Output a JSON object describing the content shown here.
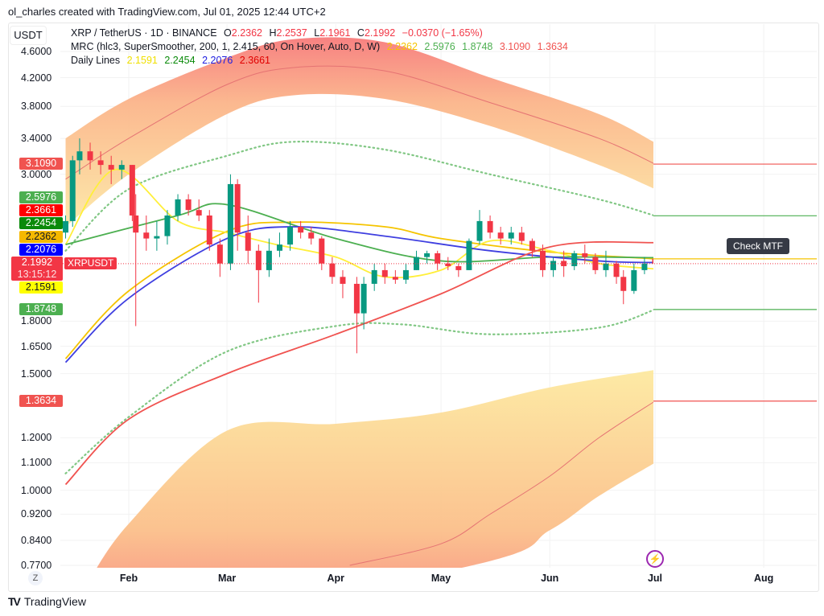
{
  "credit": "ol_charles created with TradingView.com, Jul 01, 2025 12:44 UTC+2",
  "currency_unit": "USDT",
  "symbol_line": {
    "name": "XRP / TetherUS · 1D · BINANCE",
    "o_label": "O",
    "o": "2.2362",
    "h_label": "H",
    "h": "2.2537",
    "l_label": "L",
    "l": "2.1961",
    "c_label": "C",
    "c": "2.1992",
    "change": "−0.0370 (−1.65%)"
  },
  "mrc_line": {
    "name": "MRC (hlc3, SuperSmoother, 200, 1, 2.415, 60, On Hover, Auto, D, W)",
    "values": [
      "2.2362",
      "2.5976",
      "1.8748",
      "3.1090",
      "1.3634"
    ]
  },
  "daily_line": {
    "name": "Daily Lines",
    "values": [
      "2.1591",
      "2.2454",
      "2.2076",
      "2.3661"
    ]
  },
  "badges": [
    {
      "value": "3.1090",
      "color": "#f05350"
    },
    {
      "value": "2.5976",
      "color": "#4caf50"
    },
    {
      "value": "2.3661",
      "color": "#ff0000"
    },
    {
      "value": "2.2454",
      "color": "#0a8a0a"
    },
    {
      "value": "2.2362",
      "color": "#f5b800"
    },
    {
      "value": "2.2076",
      "color": "#0000ff"
    },
    {
      "value": "2.1591",
      "color": "#ffff00"
    },
    {
      "value": "1.8748",
      "color": "#4caf50"
    },
    {
      "value": "1.3634",
      "color": "#f05350"
    }
  ],
  "last_price": {
    "value": "2.1992",
    "countdown": "13:15:12",
    "symbol": "XRPUSDT"
  },
  "tooltip": "Check MTF",
  "zoom_button": "Z",
  "logo": {
    "mark": "TV",
    "text": "TradingView"
  },
  "colors": {
    "up": "#089981",
    "down": "#f23645"
  },
  "chart_data": {
    "type": "candlestick",
    "yscale": "log",
    "ylim": [
      0.77,
      4.6
    ],
    "yticks": [
      "4.6000",
      "4.2000",
      "3.8000",
      "3.4000",
      "3.0000",
      "1.8000",
      "1.6500",
      "1.5000",
      "1.2000",
      "1.1000",
      "1.0000",
      "0.9200",
      "0.8400",
      "0.7700"
    ],
    "xticks": [
      {
        "label": "Feb",
        "date": "2025-02-01"
      },
      {
        "label": "Mar",
        "date": "2025-03-01"
      },
      {
        "label": "Apr",
        "date": "2025-04-01"
      },
      {
        "label": "May",
        "date": "2025-05-01"
      },
      {
        "label": "Jun",
        "date": "2025-06-01"
      },
      {
        "label": "Jul",
        "date": "2025-07-01"
      },
      {
        "label": "Aug",
        "date": "2025-08-01"
      }
    ],
    "candles_fields": [
      "date",
      "open",
      "high",
      "low",
      "close"
    ],
    "candles": [
      [
        "2025-01-14",
        2.45,
        2.6,
        2.4,
        2.55
      ],
      [
        "2025-01-16",
        2.55,
        3.2,
        2.5,
        3.15
      ],
      [
        "2025-01-18",
        3.15,
        3.4,
        3.0,
        3.25
      ],
      [
        "2025-01-21",
        3.25,
        3.35,
        3.05,
        3.15
      ],
      [
        "2025-01-24",
        3.15,
        3.25,
        3.0,
        3.1
      ],
      [
        "2025-01-27",
        3.1,
        3.2,
        2.9,
        3.05
      ],
      [
        "2025-01-30",
        3.05,
        3.15,
        2.95,
        3.1
      ],
      [
        "2025-02-02",
        3.1,
        3.1,
        2.55,
        2.6
      ],
      [
        "2025-02-03",
        2.6,
        2.8,
        1.77,
        2.45
      ],
      [
        "2025-02-06",
        2.45,
        2.6,
        2.3,
        2.4
      ],
      [
        "2025-02-09",
        2.4,
        2.55,
        2.3,
        2.42
      ],
      [
        "2025-02-12",
        2.42,
        2.65,
        2.35,
        2.6
      ],
      [
        "2025-02-15",
        2.6,
        2.8,
        2.55,
        2.75
      ],
      [
        "2025-02-18",
        2.75,
        2.8,
        2.6,
        2.65
      ],
      [
        "2025-02-21",
        2.65,
        2.75,
        2.55,
        2.6
      ],
      [
        "2025-02-24",
        2.6,
        2.65,
        2.3,
        2.35
      ],
      [
        "2025-02-27",
        2.35,
        2.4,
        2.1,
        2.2
      ],
      [
        "2025-03-02",
        2.2,
        3.0,
        2.15,
        2.9
      ],
      [
        "2025-03-04",
        2.9,
        2.95,
        2.3,
        2.45
      ],
      [
        "2025-03-07",
        2.45,
        2.6,
        2.2,
        2.3
      ],
      [
        "2025-03-10",
        2.3,
        2.35,
        1.92,
        2.15
      ],
      [
        "2025-03-13",
        2.15,
        2.4,
        2.1,
        2.3
      ],
      [
        "2025-03-16",
        2.3,
        2.45,
        2.25,
        2.35
      ],
      [
        "2025-03-19",
        2.35,
        2.55,
        2.3,
        2.5
      ],
      [
        "2025-03-22",
        2.5,
        2.55,
        2.4,
        2.45
      ],
      [
        "2025-03-25",
        2.45,
        2.5,
        2.35,
        2.4
      ],
      [
        "2025-03-28",
        2.4,
        2.42,
        2.15,
        2.2
      ],
      [
        "2025-03-31",
        2.2,
        2.25,
        2.05,
        2.1
      ],
      [
        "2025-04-03",
        2.1,
        2.15,
        1.95,
        2.05
      ],
      [
        "2025-04-07",
        2.05,
        2.1,
        1.61,
        1.85
      ],
      [
        "2025-04-09",
        1.85,
        2.1,
        1.75,
        2.05
      ],
      [
        "2025-04-12",
        2.05,
        2.2,
        2.0,
        2.15
      ],
      [
        "2025-04-15",
        2.15,
        2.2,
        2.05,
        2.1
      ],
      [
        "2025-04-18",
        2.1,
        2.15,
        2.05,
        2.08
      ],
      [
        "2025-04-21",
        2.08,
        2.2,
        2.05,
        2.15
      ],
      [
        "2025-04-24",
        2.15,
        2.3,
        2.15,
        2.25
      ],
      [
        "2025-04-27",
        2.25,
        2.3,
        2.2,
        2.28
      ],
      [
        "2025-04-30",
        2.28,
        2.3,
        2.15,
        2.2
      ],
      [
        "2025-05-03",
        2.2,
        2.25,
        2.15,
        2.18
      ],
      [
        "2025-05-06",
        2.18,
        2.2,
        2.1,
        2.15
      ],
      [
        "2025-05-09",
        2.15,
        2.4,
        2.15,
        2.38
      ],
      [
        "2025-05-12",
        2.38,
        2.65,
        2.35,
        2.55
      ],
      [
        "2025-05-15",
        2.55,
        2.6,
        2.4,
        2.45
      ],
      [
        "2025-05-18",
        2.45,
        2.5,
        2.35,
        2.4
      ],
      [
        "2025-05-21",
        2.4,
        2.5,
        2.35,
        2.45
      ],
      [
        "2025-05-24",
        2.45,
        2.5,
        2.35,
        2.38
      ],
      [
        "2025-05-27",
        2.38,
        2.4,
        2.25,
        2.3
      ],
      [
        "2025-05-30",
        2.3,
        2.35,
        2.1,
        2.15
      ],
      [
        "2025-06-02",
        2.15,
        2.25,
        2.1,
        2.22
      ],
      [
        "2025-06-05",
        2.22,
        2.3,
        2.1,
        2.18
      ],
      [
        "2025-06-08",
        2.18,
        2.3,
        2.15,
        2.28
      ],
      [
        "2025-06-11",
        2.28,
        2.35,
        2.2,
        2.25
      ],
      [
        "2025-06-14",
        2.25,
        2.28,
        2.12,
        2.15
      ],
      [
        "2025-06-17",
        2.15,
        2.3,
        2.1,
        2.2
      ],
      [
        "2025-06-20",
        2.2,
        2.22,
        2.05,
        2.1
      ],
      [
        "2025-06-22",
        2.1,
        2.15,
        1.91,
        2.0
      ],
      [
        "2025-06-25",
        2.0,
        2.2,
        1.98,
        2.15
      ],
      [
        "2025-06-28",
        2.15,
        2.25,
        2.12,
        2.2
      ],
      [
        "2025-07-01",
        2.2362,
        2.2537,
        2.1961,
        2.1992
      ]
    ],
    "bands": {
      "upper_outer_edge": [
        [
          "2025-01-14",
          3.4
        ],
        [
          "2025-02-01",
          3.9
        ],
        [
          "2025-03-01",
          4.5
        ],
        [
          "2025-03-20",
          4.8
        ],
        [
          "2025-04-15",
          4.75
        ],
        [
          "2025-05-15",
          4.2
        ],
        [
          "2025-06-15",
          3.7
        ],
        [
          "2025-07-01",
          3.35
        ]
      ],
      "upper_inner_edge": [
        [
          "2025-01-14",
          2.5
        ],
        [
          "2025-02-01",
          3.0
        ],
        [
          "2025-03-01",
          3.7
        ],
        [
          "2025-03-20",
          3.95
        ],
        [
          "2025-04-15",
          3.9
        ],
        [
          "2025-05-15",
          3.55
        ],
        [
          "2025-06-15",
          3.1
        ],
        [
          "2025-07-01",
          2.85
        ]
      ],
      "upper_mid": [
        [
          "2025-01-14",
          2.95
        ],
        [
          "2025-02-01",
          3.4
        ],
        [
          "2025-03-01",
          4.1
        ],
        [
          "2025-03-20",
          4.35
        ],
        [
          "2025-04-15",
          4.3
        ],
        [
          "2025-05-15",
          3.85
        ],
        [
          "2025-06-15",
          3.4
        ],
        [
          "2025-07-01",
          3.109
        ]
      ],
      "lower_inner_edge": [
        [
          "2025-01-20",
          0.72
        ],
        [
          "2025-02-01",
          0.89
        ],
        [
          "2025-03-01",
          1.23
        ],
        [
          "2025-04-01",
          1.26
        ],
        [
          "2025-05-01",
          1.31
        ],
        [
          "2025-06-01",
          1.43
        ],
        [
          "2025-07-01",
          1.52
        ]
      ],
      "lower_outer_edge": [
        [
          "2025-01-20",
          0.6
        ],
        [
          "2025-05-10",
          0.77
        ],
        [
          "2025-06-01",
          0.87
        ],
        [
          "2025-06-15",
          0.98
        ],
        [
          "2025-07-01",
          1.1
        ]
      ],
      "lower_mid": [
        [
          "2025-04-05",
          0.77
        ],
        [
          "2025-05-01",
          0.83
        ],
        [
          "2025-05-15",
          0.92
        ],
        [
          "2025-06-01",
          1.05
        ],
        [
          "2025-06-15",
          1.2
        ],
        [
          "2025-07-01",
          1.3634
        ]
      ]
    },
    "lines": [
      {
        "key": "mrc_mean",
        "color": "#f5c400",
        "dash": false,
        "value": 2.2362,
        "points": [
          [
            "2025-01-14",
            1.58
          ],
          [
            "2025-02-01",
            2.0
          ],
          [
            "2025-03-01",
            2.46
          ],
          [
            "2025-03-20",
            2.54
          ],
          [
            "2025-04-15",
            2.5
          ],
          [
            "2025-05-01",
            2.4
          ],
          [
            "2025-06-01",
            2.29
          ],
          [
            "2025-07-01",
            2.2362
          ]
        ]
      },
      {
        "key": "mrc_upper_inner",
        "color": "#81c784",
        "dash": true,
        "value": 2.5976,
        "points": [
          [
            "2025-01-14",
            2.3
          ],
          [
            "2025-02-01",
            2.85
          ],
          [
            "2025-03-01",
            3.2
          ],
          [
            "2025-03-20",
            3.36
          ],
          [
            "2025-04-15",
            3.27
          ],
          [
            "2025-05-15",
            3.0
          ],
          [
            "2025-06-15",
            2.75
          ],
          [
            "2025-07-01",
            2.5976
          ]
        ]
      },
      {
        "key": "mrc_lower_inner",
        "color": "#81c784",
        "dash": true,
        "value": 1.8748,
        "points": [
          [
            "2025-01-14",
            1.06
          ],
          [
            "2025-02-01",
            1.29
          ],
          [
            "2025-03-01",
            1.62
          ],
          [
            "2025-04-01",
            1.77
          ],
          [
            "2025-04-20",
            1.78
          ],
          [
            "2025-05-15",
            1.72
          ],
          [
            "2025-06-15",
            1.76
          ],
          [
            "2025-07-01",
            1.8748
          ]
        ]
      },
      {
        "key": "daily_yellow",
        "color": "#ffef3a",
        "dash": false,
        "value": 2.1591,
        "points": [
          [
            "2025-01-14",
            2.35
          ],
          [
            "2025-01-28",
            3.05
          ],
          [
            "2025-02-15",
            2.55
          ],
          [
            "2025-03-01",
            2.45
          ],
          [
            "2025-03-15",
            2.35
          ],
          [
            "2025-04-01",
            2.25
          ],
          [
            "2025-04-15",
            2.1
          ],
          [
            "2025-05-01",
            2.15
          ],
          [
            "2025-05-15",
            2.38
          ],
          [
            "2025-06-01",
            2.3
          ],
          [
            "2025-06-15",
            2.2
          ],
          [
            "2025-07-01",
            2.1591
          ]
        ]
      },
      {
        "key": "daily_green",
        "color": "#4caf50",
        "dash": false,
        "value": 2.2454,
        "points": [
          [
            "2025-01-14",
            2.35
          ],
          [
            "2025-02-15",
            2.6
          ],
          [
            "2025-03-01",
            2.7
          ],
          [
            "2025-04-01",
            2.4
          ],
          [
            "2025-05-01",
            2.22
          ],
          [
            "2025-06-01",
            2.25
          ],
          [
            "2025-07-01",
            2.2454
          ]
        ]
      },
      {
        "key": "daily_blue",
        "color": "#3f3fe0",
        "dash": false,
        "value": 2.2076,
        "points": [
          [
            "2025-01-14",
            1.56
          ],
          [
            "2025-02-01",
            1.95
          ],
          [
            "2025-03-01",
            2.4
          ],
          [
            "2025-03-20",
            2.5
          ],
          [
            "2025-04-15",
            2.42
          ],
          [
            "2025-05-15",
            2.3
          ],
          [
            "2025-06-15",
            2.22
          ],
          [
            "2025-07-01",
            2.2076
          ]
        ]
      },
      {
        "key": "daily_red",
        "color": "#f05350",
        "dash": false,
        "value": 2.3661,
        "points": [
          [
            "2025-01-14",
            1.02
          ],
          [
            "2025-02-01",
            1.28
          ],
          [
            "2025-03-01",
            1.5
          ],
          [
            "2025-04-01",
            1.72
          ],
          [
            "2025-05-01",
            1.98
          ],
          [
            "2025-06-01",
            2.33
          ],
          [
            "2025-07-01",
            2.3661
          ]
        ]
      }
    ],
    "extension_levels": [
      {
        "value": 3.109,
        "color": "#f05350"
      },
      {
        "value": 2.5976,
        "color": "#4caf50"
      },
      {
        "value": 2.2362,
        "color": "#f5c400"
      },
      {
        "value": 1.8748,
        "color": "#4caf50"
      },
      {
        "value": 1.3634,
        "color": "#f05350"
      }
    ],
    "last_close": 2.1992
  }
}
